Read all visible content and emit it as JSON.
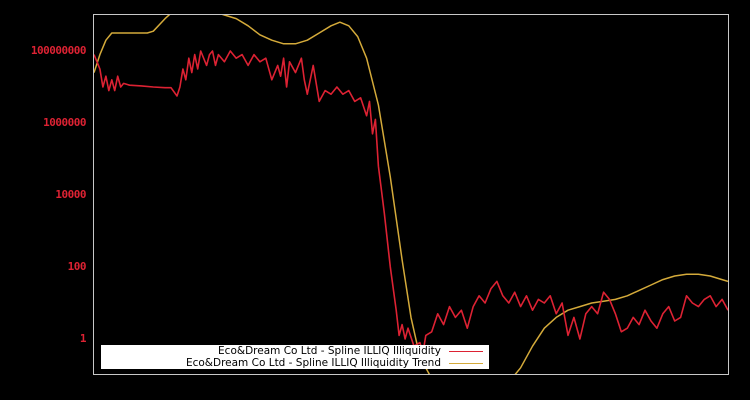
{
  "chart_data": {
    "type": "line",
    "title": "",
    "xlabel": "",
    "ylabel": "",
    "yscale": "log",
    "ylim": [
      0.1,
      1000000000
    ],
    "y_ticks": [
      {
        "label": "100000000",
        "value": 100000000
      },
      {
        "label": "1000000",
        "value": 1000000
      },
      {
        "label": "10000",
        "value": 10000
      },
      {
        "label": "100",
        "value": 100
      },
      {
        "label": "1",
        "value": 1
      }
    ],
    "x_ticks": [],
    "grid": false,
    "legend_position": "lower-left",
    "x_range": [
      0,
      100
    ],
    "series": [
      {
        "name": "Eco&Dream Co Ltd - Spline ILLIQ Illiquidity",
        "color": "#dd2233",
        "log10_points": [
          [
            0,
            7.9
          ],
          [
            0.5,
            7.7
          ],
          [
            1,
            7.5
          ],
          [
            1.5,
            7.0
          ],
          [
            2,
            7.3
          ],
          [
            2.5,
            6.9
          ],
          [
            3,
            7.2
          ],
          [
            3.5,
            6.9
          ],
          [
            4,
            7.3
          ],
          [
            4.5,
            7.0
          ],
          [
            5,
            7.1
          ],
          [
            6,
            7.05
          ],
          [
            8,
            7.03
          ],
          [
            10,
            7.0
          ],
          [
            12,
            6.98
          ],
          [
            13,
            6.98
          ],
          [
            14,
            6.75
          ],
          [
            14.5,
            7.0
          ],
          [
            15,
            7.5
          ],
          [
            15.5,
            7.2
          ],
          [
            16,
            7.8
          ],
          [
            16.5,
            7.4
          ],
          [
            17,
            7.9
          ],
          [
            17.5,
            7.5
          ],
          [
            18,
            8.0
          ],
          [
            19,
            7.6
          ],
          [
            19.5,
            7.9
          ],
          [
            20,
            8.0
          ],
          [
            20.5,
            7.6
          ],
          [
            21,
            7.9
          ],
          [
            22,
            7.7
          ],
          [
            23,
            8.0
          ],
          [
            24,
            7.8
          ],
          [
            25,
            7.9
          ],
          [
            26,
            7.6
          ],
          [
            27,
            7.9
          ],
          [
            28,
            7.7
          ],
          [
            29,
            7.8
          ],
          [
            30,
            7.2
          ],
          [
            31,
            7.6
          ],
          [
            31.5,
            7.3
          ],
          [
            32,
            7.8
          ],
          [
            32.5,
            7.0
          ],
          [
            33,
            7.7
          ],
          [
            34,
            7.4
          ],
          [
            35,
            7.8
          ],
          [
            35.5,
            7.2
          ],
          [
            36,
            6.8
          ],
          [
            37,
            7.6
          ],
          [
            38,
            6.6
          ],
          [
            39,
            6.9
          ],
          [
            40,
            6.8
          ],
          [
            41,
            7.0
          ],
          [
            42,
            6.8
          ],
          [
            43,
            6.9
          ],
          [
            44,
            6.6
          ],
          [
            45,
            6.7
          ],
          [
            46,
            6.2
          ],
          [
            46.5,
            6.6
          ],
          [
            47,
            5.7
          ],
          [
            47.5,
            6.1
          ],
          [
            48,
            4.8
          ],
          [
            49,
            3.5
          ],
          [
            50,
            2.0
          ],
          [
            51,
            0.8
          ],
          [
            51.5,
            0.1
          ],
          [
            52,
            0.4
          ],
          [
            52.5,
            0.0
          ],
          [
            53,
            0.3
          ],
          [
            54,
            -0.2
          ],
          [
            55,
            -0.1
          ],
          [
            55.5,
            -0.4
          ],
          [
            56,
            0.1
          ],
          [
            57,
            0.2
          ],
          [
            58,
            0.7
          ],
          [
            59,
            0.4
          ],
          [
            60,
            0.9
          ],
          [
            61,
            0.6
          ],
          [
            62,
            0.8
          ],
          [
            63,
            0.3
          ],
          [
            64,
            0.9
          ],
          [
            65,
            1.2
          ],
          [
            66,
            1.0
          ],
          [
            67,
            1.4
          ],
          [
            68,
            1.6
          ],
          [
            69,
            1.2
          ],
          [
            70,
            1.0
          ],
          [
            71,
            1.3
          ],
          [
            72,
            0.9
          ],
          [
            73,
            1.2
          ],
          [
            74,
            0.8
          ],
          [
            75,
            1.1
          ],
          [
            76,
            1.0
          ],
          [
            77,
            1.2
          ],
          [
            78,
            0.7
          ],
          [
            79,
            1.0
          ],
          [
            80,
            0.1
          ],
          [
            81,
            0.6
          ],
          [
            82,
            0.0
          ],
          [
            83,
            0.7
          ],
          [
            84,
            0.9
          ],
          [
            85,
            0.7
          ],
          [
            86,
            1.3
          ],
          [
            87,
            1.1
          ],
          [
            88,
            0.7
          ],
          [
            89,
            0.2
          ],
          [
            90,
            0.3
          ],
          [
            91,
            0.6
          ],
          [
            92,
            0.4
          ],
          [
            93,
            0.8
          ],
          [
            94,
            0.5
          ],
          [
            95,
            0.3
          ],
          [
            96,
            0.7
          ],
          [
            97,
            0.9
          ],
          [
            98,
            0.5
          ],
          [
            99,
            0.6
          ],
          [
            100,
            1.2
          ],
          [
            101,
            1.0
          ],
          [
            102,
            0.9
          ],
          [
            103,
            1.1
          ],
          [
            104,
            1.2
          ],
          [
            105,
            0.9
          ],
          [
            106,
            1.1
          ],
          [
            107,
            0.8
          ]
        ]
      },
      {
        "name": "Eco&Dream Co Ltd - Spline ILLIQ Illiquidity Trend",
        "color": "#d4aa3a",
        "log10_points": [
          [
            0,
            7.4
          ],
          [
            1,
            7.9
          ],
          [
            2,
            8.3
          ],
          [
            3,
            8.5
          ],
          [
            5,
            8.5
          ],
          [
            7,
            8.5
          ],
          [
            9,
            8.5
          ],
          [
            10,
            8.55
          ],
          [
            12,
            8.9
          ],
          [
            14,
            9.2
          ],
          [
            16,
            9.3
          ],
          [
            18,
            9.25
          ],
          [
            20,
            9.1
          ],
          [
            22,
            9.0
          ],
          [
            24,
            8.9
          ],
          [
            26,
            8.7
          ],
          [
            28,
            8.45
          ],
          [
            30,
            8.3
          ],
          [
            32,
            8.2
          ],
          [
            34,
            8.2
          ],
          [
            36,
            8.3
          ],
          [
            38,
            8.5
          ],
          [
            40,
            8.7
          ],
          [
            41.5,
            8.8
          ],
          [
            43,
            8.7
          ],
          [
            44.5,
            8.4
          ],
          [
            46,
            7.8
          ],
          [
            48,
            6.5
          ],
          [
            50,
            4.5
          ],
          [
            52,
            2.2
          ],
          [
            53.5,
            0.6
          ],
          [
            55,
            -0.5
          ],
          [
            57,
            -1.1
          ],
          [
            65,
            -1.4
          ],
          [
            70,
            -1.2
          ],
          [
            72,
            -0.8
          ],
          [
            74,
            -0.2
          ],
          [
            76,
            0.3
          ],
          [
            78,
            0.6
          ],
          [
            80,
            0.8
          ],
          [
            82,
            0.9
          ],
          [
            84,
            1.0
          ],
          [
            86,
            1.05
          ],
          [
            88,
            1.1
          ],
          [
            90,
            1.2
          ],
          [
            92,
            1.35
          ],
          [
            94,
            1.5
          ],
          [
            96,
            1.65
          ],
          [
            98,
            1.75
          ],
          [
            100,
            1.8
          ],
          [
            102,
            1.8
          ],
          [
            104,
            1.75
          ],
          [
            106,
            1.65
          ],
          [
            107,
            1.6
          ]
        ]
      }
    ]
  },
  "legend": {
    "items": [
      {
        "label": "Eco&Dream Co Ltd - Spline ILLIQ Illiquidity",
        "color": "#dd2233"
      },
      {
        "label": "Eco&Dream Co Ltd - Spline ILLIQ Illiquidity Trend",
        "color": "#d4aa3a"
      }
    ]
  },
  "style": {
    "background": "#000000",
    "axis_color": "#c8c8c8",
    "tick_label_color": "#dd2233"
  }
}
